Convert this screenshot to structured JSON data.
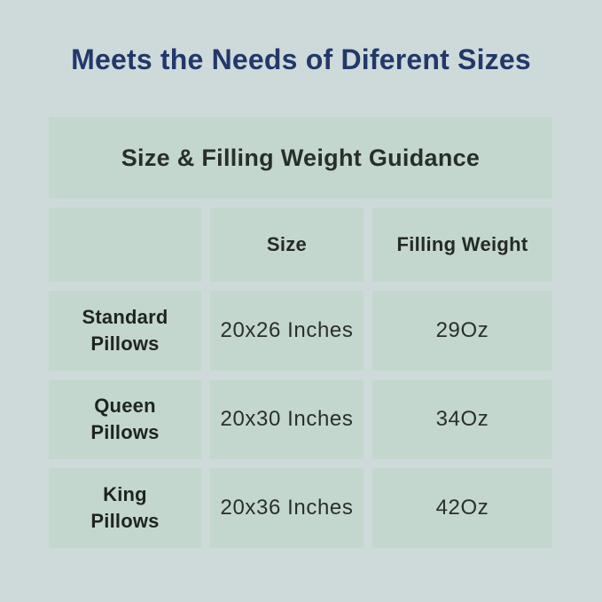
{
  "page": {
    "title": "Meets the Needs of Diferent Sizes"
  },
  "colors": {
    "page_background": "#cedada",
    "cell_background": "#c4d7ce",
    "title_text": "#22386a",
    "table_text": "#2a2f2c"
  },
  "table": {
    "caption": "Size & Filling Weight Guidance",
    "columns": [
      "",
      "Size",
      "Filling Weight"
    ],
    "rows": [
      {
        "label": "Standard\nPillows",
        "size": "20x26 Inches",
        "filling_weight": "29Oz"
      },
      {
        "label": "Queen\nPillows",
        "size": "20x30 Inches",
        "filling_weight": "34Oz"
      },
      {
        "label": "King\nPillows",
        "size": "20x36 Inches",
        "filling_weight": "42Oz"
      }
    ]
  },
  "chart_data": {
    "type": "table",
    "title": "Size & Filling Weight Guidance",
    "columns": [
      "",
      "Size",
      "Filling Weight"
    ],
    "rows": [
      [
        "Standard Pillows",
        "20x26 Inches",
        "29Oz"
      ],
      [
        "Queen Pillows",
        "20x30 Inches",
        "34Oz"
      ],
      [
        "King Pillows",
        "20x36 Inches",
        "42Oz"
      ]
    ]
  }
}
